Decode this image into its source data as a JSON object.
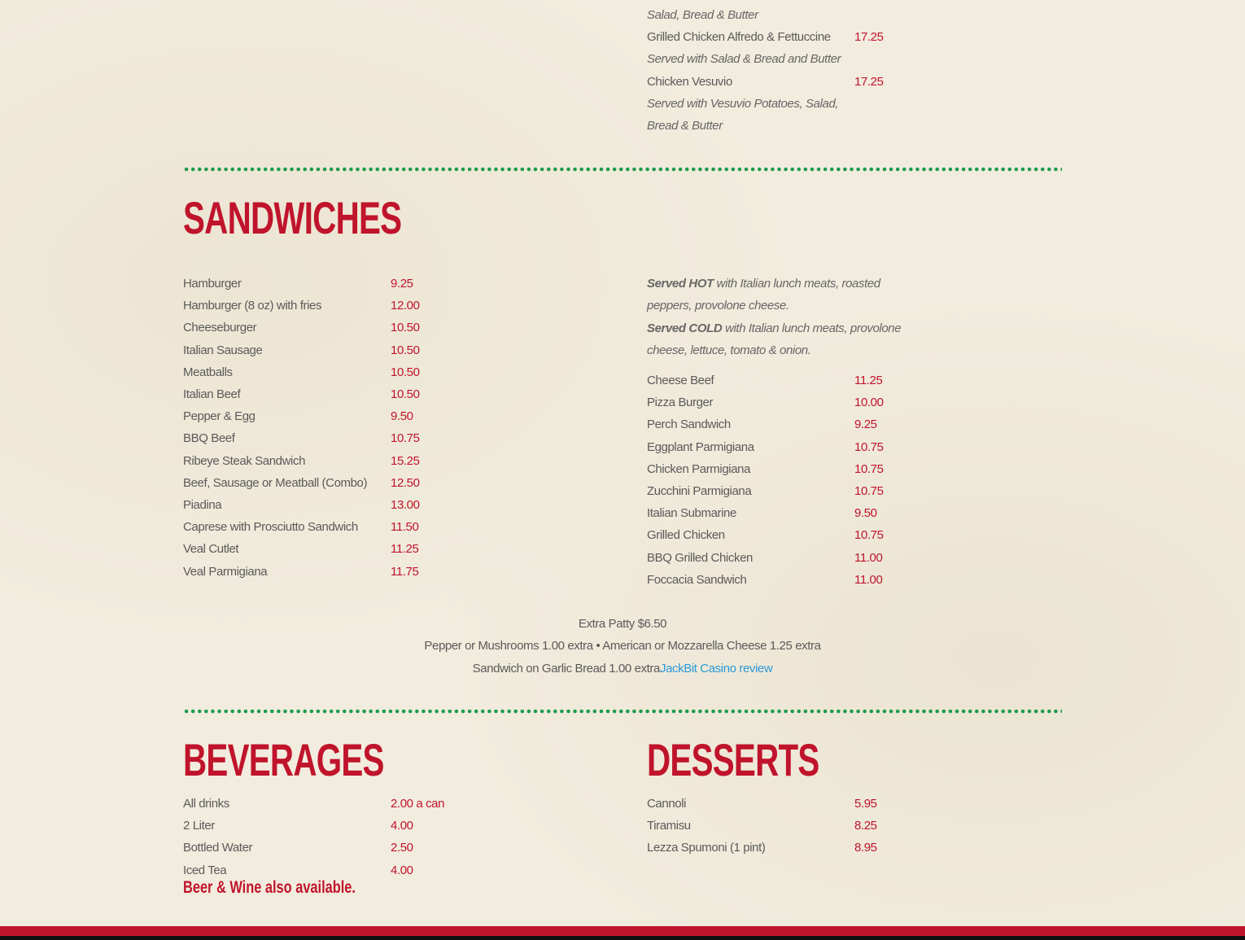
{
  "top_right": {
    "lines": [
      {
        "type": "note",
        "text": "Salad, Bread & Butter"
      },
      {
        "type": "item",
        "name": "Grilled Chicken Alfredo & Fettuccine",
        "price": "17.25"
      },
      {
        "type": "note",
        "text": "Served with Salad & Bread and Butter"
      },
      {
        "type": "item",
        "name": "Chicken Vesuvio",
        "price": "17.25"
      },
      {
        "type": "note",
        "text": "Served with Vesuvio Potatoes, Salad,"
      },
      {
        "type": "note",
        "text": "Bread & Butter"
      }
    ]
  },
  "sandwiches": {
    "title": "SANDWICHES",
    "left": [
      {
        "name": "Hamburger",
        "price": "9.25"
      },
      {
        "name": "Hamburger (8 oz) with fries",
        "price": "12.00"
      },
      {
        "name": "Cheeseburger",
        "price": "10.50"
      },
      {
        "name": "Italian Sausage",
        "price": "10.50"
      },
      {
        "name": "Meatballs",
        "price": "10.50"
      },
      {
        "name": "Italian Beef",
        "price": "10.50"
      },
      {
        "name": "Pepper & Egg",
        "price": "9.50"
      },
      {
        "name": "BBQ Beef",
        "price": "10.75"
      },
      {
        "name": "Ribeye Steak Sandwich",
        "price": "15.25"
      },
      {
        "name": "Beef, Sausage or Meatball (Combo)",
        "price": "12.50"
      },
      {
        "name": "Piadina",
        "price": "13.00"
      },
      {
        "name": "Caprese with Prosciutto Sandwich",
        "price": "11.50"
      },
      {
        "name": "Veal Cutlet",
        "price": "11.25"
      },
      {
        "name": "Veal Parmigiana",
        "price": "11.75"
      }
    ],
    "hot_bold": "Served HOT",
    "hot_rest": " with Italian lunch meats, roasted",
    "hot_line2": "peppers, provolone cheese.",
    "cold_bold": "Served COLD",
    "cold_rest": " with Italian lunch meats, provolone",
    "cold_line2": "cheese, lettuce, tomato & onion.",
    "right": [
      {
        "name": "Cheese Beef",
        "price": "11.25"
      },
      {
        "name": "Pizza Burger",
        "price": "10.00"
      },
      {
        "name": "Perch Sandwich",
        "price": "9.25"
      },
      {
        "name": "Eggplant Parmigiana",
        "price": "10.75"
      },
      {
        "name": "Chicken Parmigiana",
        "price": "10.75"
      },
      {
        "name": "Zucchini Parmigiana",
        "price": "10.75"
      },
      {
        "name": "Italian Submarine",
        "price": "9.50"
      },
      {
        "name": "Grilled Chicken",
        "price": "10.75"
      },
      {
        "name": "BBQ Grilled Chicken",
        "price": "11.00"
      },
      {
        "name": "Foccacia Sandwich",
        "price": "11.00"
      }
    ],
    "extra1": "Extra Patty $6.50",
    "extra2": "Pepper or Mushrooms 1.00 extra • American or Mozzarella Cheese 1.25 extra",
    "extra3": "Sandwich on Garlic Bread 1.00 extra",
    "link": "JackBit Casino review"
  },
  "beverages": {
    "title": "BEVERAGES",
    "items": [
      {
        "name": "All drinks",
        "price": "2.00 a can"
      },
      {
        "name": "2 Liter",
        "price": "4.00"
      },
      {
        "name": "Bottled Water",
        "price": "2.50"
      },
      {
        "name": "Iced Tea",
        "price": "4.00"
      }
    ],
    "note": "Beer & Wine also available."
  },
  "desserts": {
    "title": "DESSERTS",
    "items": [
      {
        "name": "Cannoli",
        "price": "5.95"
      },
      {
        "name": "Tiramisu",
        "price": "8.25"
      },
      {
        "name": "Lezza Spumoni (1 pint)",
        "price": "8.95"
      }
    ]
  },
  "colors": {
    "accent": "#c0142c",
    "divider": "#1a9a4a",
    "link": "#2a9ad8"
  }
}
